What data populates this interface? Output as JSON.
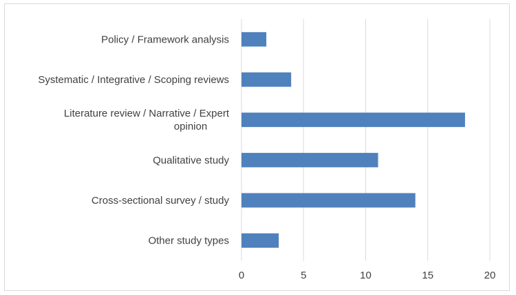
{
  "chart_data": {
    "type": "bar",
    "orientation": "horizontal",
    "title": "",
    "xlabel": "",
    "ylabel": "",
    "categories": [
      "Policy / Framework analysis",
      "Systematic / Integrative / Scoping reviews",
      "Literature review / Narrative / Expert opinion",
      "Qualitative study",
      "Cross-sectional survey / study",
      "Other study types"
    ],
    "category_label_lines": [
      [
        "Policy / Framework analysis"
      ],
      [
        "Systematic / Integrative / Scoping reviews"
      ],
      [
        "Literature review / Narrative / Expert",
        "opinion"
      ],
      [
        "Qualitative study"
      ],
      [
        "Cross-sectional survey / study"
      ],
      [
        "Other study types"
      ]
    ],
    "values": [
      2,
      4,
      18,
      11,
      14,
      3
    ],
    "xlim": [
      0,
      20
    ],
    "x_ticks": [
      0,
      5,
      10,
      15,
      20
    ],
    "grid": "vertical",
    "legend": "none",
    "bar_color": "#4f81bd",
    "grid_color": "#d9d9d9"
  }
}
